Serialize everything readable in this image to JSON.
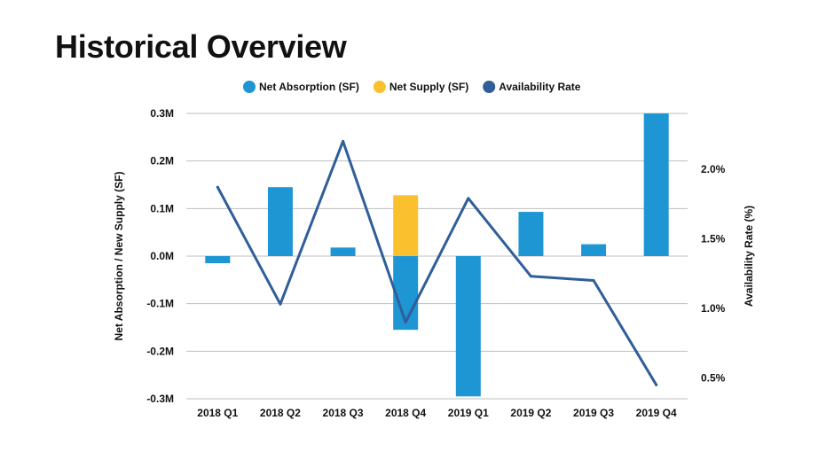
{
  "title": "Historical Overview",
  "chart_data": {
    "type": "bar",
    "categories": [
      "2018 Q1",
      "2018 Q2",
      "2018 Q3",
      "2018 Q4",
      "2019 Q1",
      "2019 Q2",
      "2019 Q3",
      "2019 Q4"
    ],
    "series": [
      {
        "name": "Net Absorption (SF)",
        "type": "bar",
        "axis": "left",
        "color": "#1e96d4",
        "values": [
          -0.015,
          0.145,
          0.018,
          -0.155,
          -0.295,
          0.093,
          0.025,
          0.3
        ]
      },
      {
        "name": "Net Supply (SF)",
        "type": "bar",
        "axis": "left",
        "color": "#fbc02d",
        "values": [
          0,
          0,
          0,
          0.128,
          0,
          0,
          0,
          0
        ]
      },
      {
        "name": "Availability Rate",
        "type": "line",
        "axis": "right",
        "color": "#2f5e99",
        "values": [
          1.87,
          1.03,
          2.2,
          0.9,
          1.79,
          1.23,
          1.2,
          0.45
        ]
      }
    ],
    "ylabel": "Net Absorption / New Supply (SF)",
    "y2label": "Availability Rate (%)",
    "ylim": [
      -0.3,
      0.3
    ],
    "y2lim": [
      0.35,
      2.4
    ],
    "yticks": [
      {
        "v": 0.3,
        "label": "0.3M"
      },
      {
        "v": 0.2,
        "label": "0.2M"
      },
      {
        "v": 0.1,
        "label": "0.1M"
      },
      {
        "v": 0.0,
        "label": "0.0M"
      },
      {
        "v": -0.1,
        "label": "-0.1M"
      },
      {
        "v": -0.2,
        "label": "-0.2M"
      },
      {
        "v": -0.3,
        "label": "-0.3M"
      }
    ],
    "y2ticks": [
      {
        "v": 2.0,
        "label": "2.0%"
      },
      {
        "v": 1.5,
        "label": "1.5%"
      },
      {
        "v": 1.0,
        "label": "1.0%"
      },
      {
        "v": 0.5,
        "label": "0.5%"
      }
    ],
    "grid": true,
    "legend_position": "top"
  }
}
